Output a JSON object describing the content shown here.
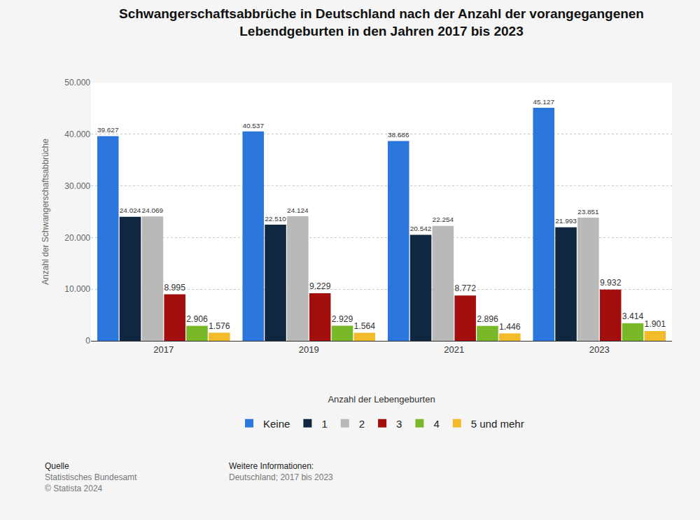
{
  "chart_data": {
    "type": "bar",
    "title": "Schwangerschaftsabbrüche in Deutschland nach der Anzahl der vorangegangenen\nLebendgeburten in den Jahren 2017 bis 2023",
    "x_label": "Anzahl der Lebengeburten",
    "y_label": "Anzahl der Schwangerschaftsabbrüche",
    "categories": [
      "2017",
      "2019",
      "2021",
      "2023"
    ],
    "series": [
      {
        "name": "Keine",
        "color": "#2a76dd",
        "values": [
          39627,
          40537,
          38686,
          45127
        ],
        "value_labels": [
          "39.627",
          "40.537",
          "38.686",
          "45.127"
        ]
      },
      {
        "name": "1",
        "color": "#0f2740",
        "values": [
          24024,
          22510,
          20542,
          21993
        ],
        "value_labels": [
          "24.024",
          "22.510",
          "20.542",
          "21.993"
        ]
      },
      {
        "name": "2",
        "color": "#b9b9b9",
        "values": [
          24069,
          24124,
          22254,
          23851
        ],
        "value_labels": [
          "24.069",
          "24.124",
          "22.254",
          "23.851"
        ]
      },
      {
        "name": "3",
        "color": "#a30f0f",
        "values": [
          8995,
          9229,
          8772,
          9932
        ],
        "value_labels": [
          "8.995",
          "9.229",
          "8.772",
          "9.932"
        ]
      },
      {
        "name": "4",
        "color": "#78b829",
        "values": [
          2906,
          2929,
          2896,
          3414
        ],
        "value_labels": [
          "2.906",
          "2.929",
          "2.896",
          "3.414"
        ]
      },
      {
        "name": "5 und mehr",
        "color": "#f1bb2c",
        "values": [
          1576,
          1564,
          1446,
          1901
        ],
        "value_labels": [
          "1.576",
          "1.564",
          "1.446",
          "1.901"
        ]
      }
    ],
    "ylim": [
      0,
      50000
    ],
    "yticks": [
      0,
      {
        "value": 10000,
        "label": "10.000"
      },
      {
        "value": 20000,
        "label": "20.000"
      },
      {
        "value": 30000,
        "label": "30.000"
      },
      {
        "value": 40000,
        "label": "40.000"
      },
      {
        "value": 50000,
        "label": "50.000"
      }
    ],
    "grid": true,
    "data_labels": true,
    "legend": "bottom",
    "annotations": [
      "Quelle",
      "Statistisches Bundesamt",
      "© Statista 2024",
      "Weitere Informationen:",
      "Deutschland; 2017 bis 2023"
    ]
  }
}
